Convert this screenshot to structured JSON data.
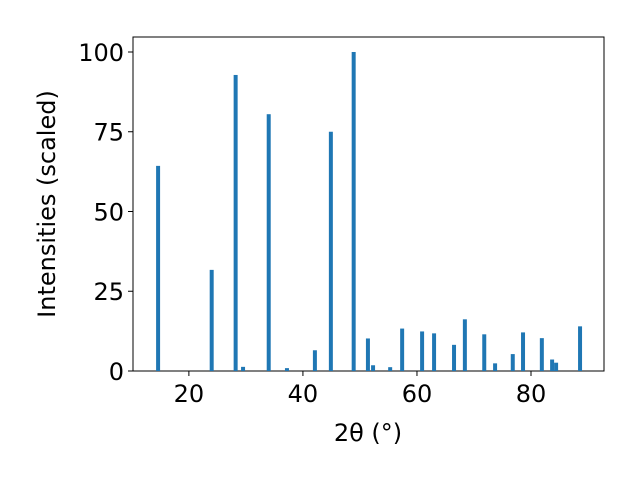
{
  "chart_data": {
    "type": "bar",
    "xlabel": "2θ (°)",
    "ylabel": "Intensities (scaled)",
    "x": [
      14.6,
      24.0,
      28.2,
      29.5,
      34.0,
      37.2,
      42.1,
      44.9,
      48.9,
      51.4,
      52.3,
      55.3,
      57.4,
      60.9,
      63.0,
      66.5,
      68.4,
      71.8,
      73.7,
      76.8,
      78.6,
      81.9,
      83.7,
      84.4,
      88.6
    ],
    "values": [
      64.3,
      31.7,
      92.8,
      1.3,
      80.5,
      0.9,
      6.5,
      75,
      100,
      10.2,
      1.8,
      1.2,
      13.3,
      12.4,
      11.8,
      8.2,
      16.2,
      11.5,
      2.4,
      5.3,
      12.1,
      10.3,
      3.6,
      2.6,
      14.0
    ],
    "color": "#1f77b4",
    "xlim": [
      10.2,
      92.8
    ],
    "xticks": [
      20,
      40,
      60,
      80
    ],
    "ylim": [
      0,
      104.7
    ],
    "yticks": [
      0,
      25,
      50,
      75,
      100
    ],
    "grid": false
  }
}
